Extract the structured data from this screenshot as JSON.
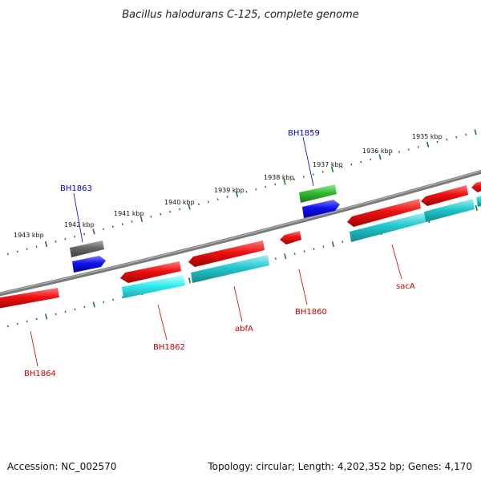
{
  "title": "Bacillus halodurans C-125, complete genome",
  "accession": "Accession: NC_002570",
  "summary": "Topology: circular; Length: 4,202,352 bp; Genes: 4,170",
  "colors": {
    "red": "#ee1111",
    "cyan": "#22c8cc",
    "blue": "#1111ee",
    "green": "#33bb33",
    "gray": "#666666",
    "backbone": "#888888",
    "tick": "#227722",
    "label_blue": "#0000cc",
    "label_red": "#cc0000"
  },
  "kbp_labels": [
    {
      "text": "1935 kbp"
    },
    {
      "text": "1936 kbp"
    },
    {
      "text": "1937 kbp"
    },
    {
      "text": "1938 kbp"
    },
    {
      "text": "1939 kbp"
    },
    {
      "text": "1940 kbp"
    },
    {
      "text": "1941 kbp"
    },
    {
      "text": "1942 kbp"
    },
    {
      "text": "1943 kbp"
    }
  ],
  "gene_labels": [
    {
      "text": "BH1859",
      "color": "label_blue"
    },
    {
      "text": "BH1863",
      "color": "label_blue"
    },
    {
      "text": "BH1864",
      "color": "label_red"
    },
    {
      "text": "BH1862",
      "color": "label_red"
    },
    {
      "text": "abfA",
      "color": "label_red"
    },
    {
      "text": "BH1860",
      "color": "label_red"
    },
    {
      "text": "sacA",
      "color": "label_red"
    }
  ]
}
